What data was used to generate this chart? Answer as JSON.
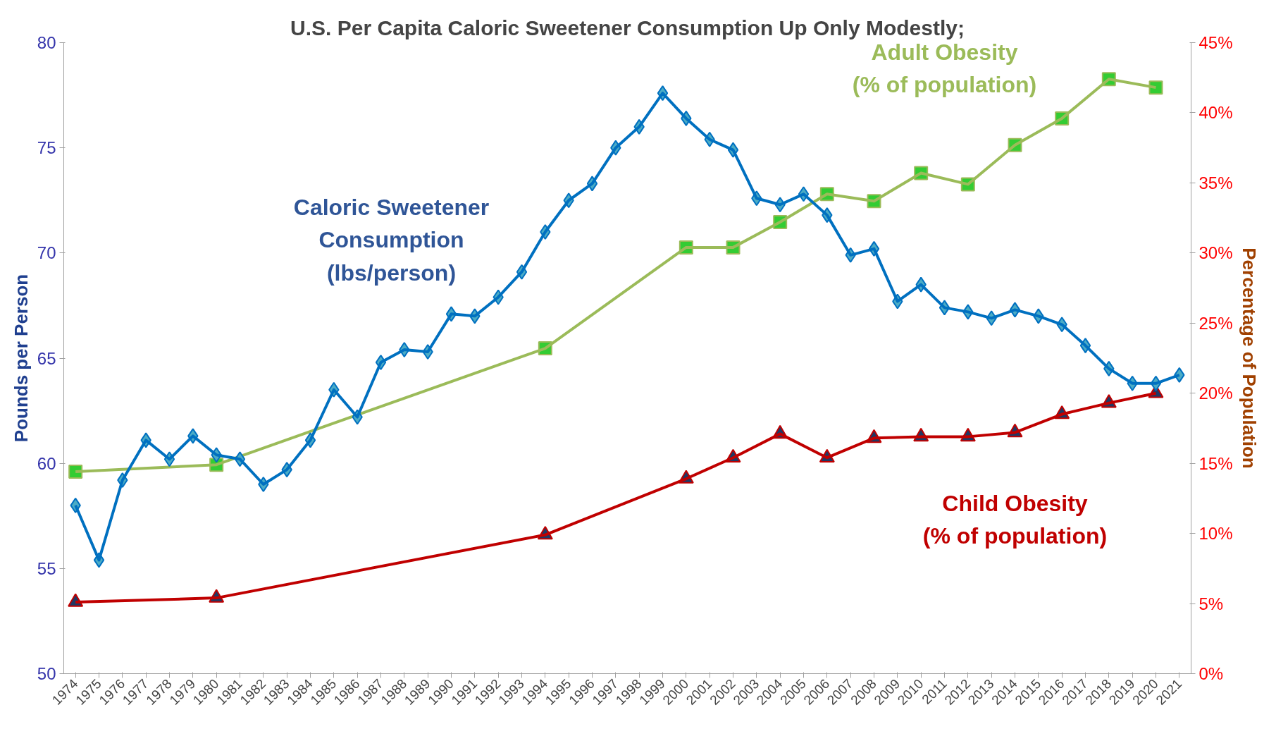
{
  "chart_data": {
    "type": "line",
    "title": "U.S. Per Capita Caloric Sweetener Consumption Up Only Modestly;",
    "ylabel": "Pounds per Person",
    "y2label": "Percentage of Population",
    "x": [
      1974,
      1975,
      1976,
      1977,
      1978,
      1979,
      1980,
      1981,
      1982,
      1983,
      1984,
      1985,
      1986,
      1987,
      1988,
      1989,
      1990,
      1991,
      1992,
      1993,
      1994,
      1995,
      1996,
      1997,
      1998,
      1999,
      2000,
      2001,
      2002,
      2003,
      2004,
      2005,
      2006,
      2007,
      2008,
      2009,
      2010,
      2011,
      2012,
      2013,
      2014,
      2015,
      2016,
      2017,
      2018,
      2019,
      2020,
      2021
    ],
    "xlim": [
      1973.5,
      2021.5
    ],
    "xticks": [
      1974,
      1975,
      1976,
      1977,
      1978,
      1979,
      1980,
      1981,
      1982,
      1983,
      1984,
      1985,
      1986,
      1987,
      1988,
      1989,
      1990,
      1991,
      1992,
      1993,
      1994,
      1995,
      1996,
      1997,
      1998,
      1999,
      2000,
      2001,
      2002,
      2003,
      2004,
      2005,
      2006,
      2007,
      2008,
      2009,
      2010,
      2011,
      2012,
      2013,
      2014,
      2015,
      2016,
      2017,
      2018,
      2019,
      2020,
      2021
    ],
    "ylim": [
      50,
      80
    ],
    "yticks": [
      50,
      55,
      60,
      65,
      70,
      75,
      80
    ],
    "y2lim": [
      0,
      45
    ],
    "y2ticks": [
      {
        "value": 0,
        "label": "0%"
      },
      {
        "value": 5,
        "label": "5%"
      },
      {
        "value": 10,
        "label": "10%"
      },
      {
        "value": 15,
        "label": "15%"
      },
      {
        "value": 20,
        "label": "20%"
      },
      {
        "value": 25,
        "label": "25%"
      },
      {
        "value": 30,
        "label": "30%"
      },
      {
        "value": 35,
        "label": "35%"
      },
      {
        "value": 40,
        "label": "40%"
      },
      {
        "value": 45,
        "label": "45%"
      }
    ],
    "grid": false,
    "line_style": "solid",
    "series": [
      {
        "name": "Caloric Sweetener\nConsumption\n(lbs/person)",
        "color": "#0070c0",
        "marker": "diamond",
        "values": [
          58.0,
          55.4,
          59.2,
          61.1,
          60.2,
          61.3,
          60.4,
          60.2,
          59.0,
          59.7,
          61.1,
          63.5,
          62.2,
          64.8,
          65.4,
          65.3,
          67.1,
          67.0,
          67.9,
          69.1,
          71.0,
          72.5,
          73.3,
          75.0,
          76.0,
          77.6,
          76.4,
          75.4,
          74.9,
          72.6,
          72.3,
          72.8,
          71.8,
          69.9,
          70.2,
          67.7,
          68.5,
          67.4,
          67.2,
          66.9,
          67.3,
          67.0,
          66.6,
          65.6,
          64.5,
          63.8,
          63.8,
          64.2
        ]
      },
      {
        "name": "Adult Obesity\n(% of population)",
        "color": "#9bbb59",
        "marker": "square",
        "axis": "y2",
        "x": [
          1974,
          1980,
          1994,
          2000,
          2002,
          2004,
          2006,
          2008,
          2010,
          2012,
          2014,
          2016,
          2018,
          2020
        ],
        "values": [
          14.4,
          14.9,
          23.2,
          30.4,
          30.4,
          32.2,
          34.2,
          33.7,
          35.7,
          34.9,
          37.7,
          39.6,
          42.4,
          41.8
        ]
      },
      {
        "name": "Child Obesity\n(% of population)",
        "color": "#c00000",
        "marker": "triangle",
        "axis": "y2",
        "x": [
          1974,
          1980,
          1994,
          2000,
          2002,
          2004,
          2006,
          2008,
          2010,
          2012,
          2014,
          2016,
          2018,
          2020
        ],
        "values": [
          5.1,
          5.4,
          9.9,
          13.9,
          15.4,
          17.1,
          15.4,
          16.8,
          16.9,
          16.9,
          17.2,
          18.5,
          19.3,
          20.0
        ]
      }
    ]
  }
}
